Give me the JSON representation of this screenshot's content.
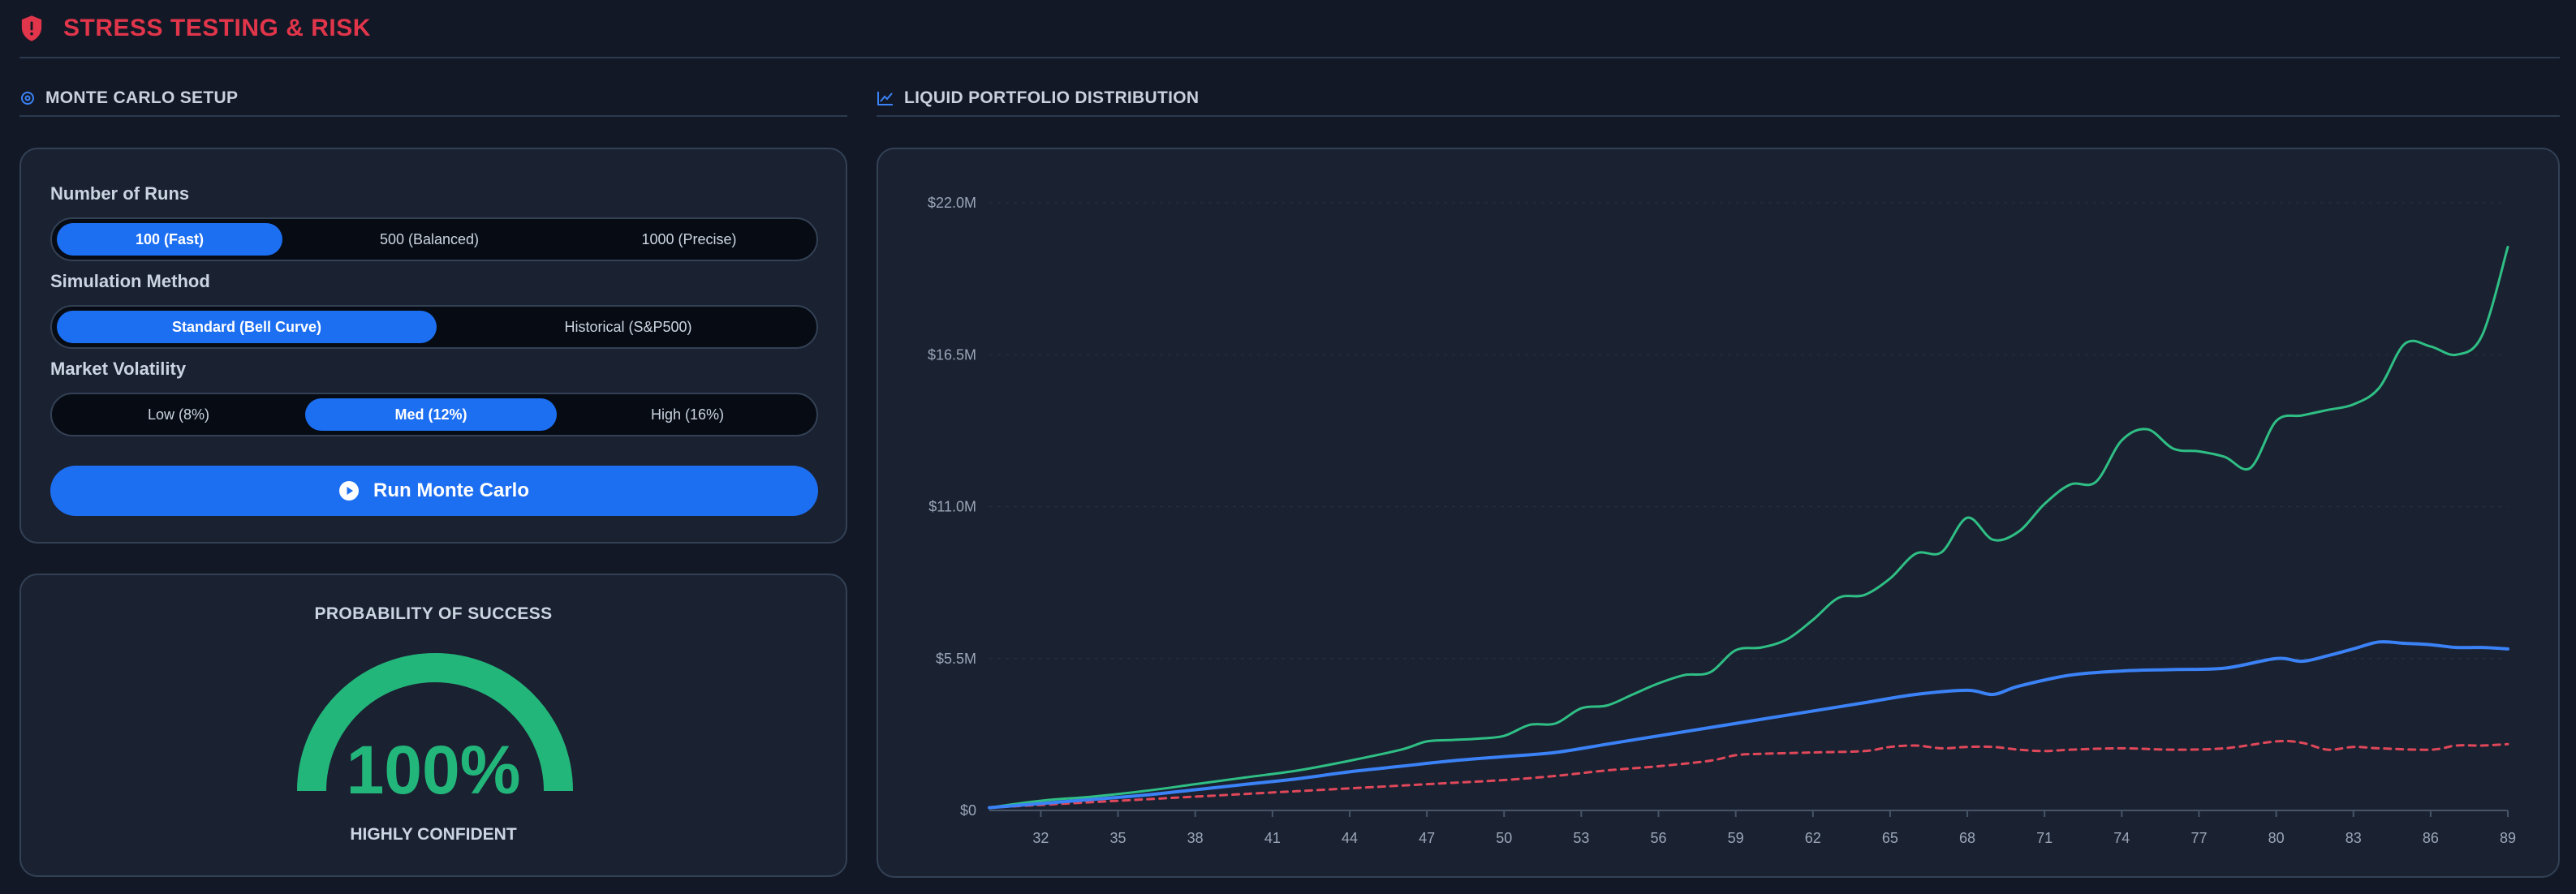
{
  "header": {
    "title": "STRESS TESTING & RISK",
    "icon": "shield-alert-icon",
    "color": "#e0354a"
  },
  "setup": {
    "heading": "MONTE CARLO SETUP",
    "runs": {
      "label": "Number of Runs",
      "options": [
        "100 (Fast)",
        "500 (Balanced)",
        "1000 (Precise)"
      ],
      "selected": "100 (Fast)"
    },
    "method": {
      "label": "Simulation Method",
      "options": [
        "Standard (Bell Curve)",
        "Historical (S&P500)"
      ],
      "selected": "Standard (Bell Curve)"
    },
    "volatility": {
      "label": "Market Volatility",
      "options": [
        "Low (8%)",
        "Med (12%)",
        "High (16%)"
      ],
      "selected": "Med (12%)"
    },
    "run_button": "Run Monte Carlo"
  },
  "probability": {
    "title": "PROBABILITY OF SUCCESS",
    "value": "100%",
    "fraction": 1.0,
    "subtitle": "HIGHLY CONFIDENT",
    "color": "#22b67a"
  },
  "distribution": {
    "heading": "LIQUID PORTFOLIO DISTRIBUTION"
  },
  "chart_data": {
    "type": "line",
    "ylim": [
      0,
      22000000
    ],
    "xlim": [
      30,
      89
    ],
    "y_ticks": [
      "$0",
      "$5.5M",
      "$11.0M",
      "$16.5M",
      "$22.0M"
    ],
    "y_tick_values": [
      0,
      5500000,
      11000000,
      16500000,
      22000000
    ],
    "x_ticks": [
      32,
      35,
      38,
      41,
      44,
      47,
      50,
      53,
      56,
      59,
      62,
      65,
      68,
      71,
      74,
      77,
      80,
      83,
      86,
      89
    ],
    "grid": true,
    "series": [
      {
        "key": "upper",
        "color": "#2fbf85",
        "style": "solid",
        "x": [
          30,
          32,
          34,
          36,
          38,
          40,
          42,
          44,
          46,
          47,
          48,
          49,
          50,
          51,
          52,
          53,
          54,
          55,
          56,
          57,
          58,
          59,
          60,
          61,
          62,
          63,
          64,
          65,
          66,
          67,
          68,
          69,
          70,
          71,
          72,
          73,
          74,
          75,
          76,
          77,
          78,
          79,
          80,
          81,
          82,
          83,
          84,
          85,
          86,
          87,
          88,
          89
        ],
        "y": [
          0.1,
          0.35,
          0.5,
          0.7,
          0.95,
          1.2,
          1.45,
          1.8,
          2.2,
          2.5,
          2.55,
          2.6,
          2.7,
          3.1,
          3.15,
          3.7,
          3.8,
          4.2,
          4.6,
          4.9,
          5.0,
          5.8,
          5.9,
          6.2,
          6.9,
          7.7,
          7.8,
          8.4,
          9.3,
          9.35,
          10.6,
          9.8,
          10.1,
          11.1,
          11.8,
          11.9,
          13.4,
          13.8,
          13.1,
          13.0,
          12.8,
          12.4,
          14.1,
          14.3,
          14.5,
          14.7,
          15.3,
          16.9,
          16.8,
          16.5,
          17.2,
          20.4
        ],
        "unit": "millions"
      },
      {
        "key": "median",
        "color": "#3b82f6",
        "style": "solid",
        "x": [
          30,
          32,
          34,
          36,
          38,
          40,
          42,
          44,
          46,
          48,
          50,
          52,
          54,
          56,
          58,
          60,
          62,
          64,
          66,
          68,
          69,
          70,
          72,
          74,
          76,
          78,
          80,
          81,
          82,
          83,
          84,
          85,
          86,
          87,
          88,
          89
        ],
        "y": [
          0.1,
          0.25,
          0.4,
          0.55,
          0.75,
          0.95,
          1.15,
          1.4,
          1.6,
          1.8,
          1.95,
          2.1,
          2.4,
          2.7,
          3.0,
          3.3,
          3.6,
          3.9,
          4.2,
          4.35,
          4.2,
          4.5,
          4.9,
          5.05,
          5.1,
          5.15,
          5.5,
          5.4,
          5.6,
          5.85,
          6.1,
          6.05,
          6.0,
          5.9,
          5.9,
          5.85
        ],
        "unit": "millions"
      },
      {
        "key": "lower",
        "color": "#e0485a",
        "style": "dashed",
        "x": [
          30,
          32,
          34,
          36,
          38,
          40,
          42,
          44,
          46,
          48,
          50,
          52,
          54,
          56,
          58,
          59,
          60,
          62,
          64,
          65,
          66,
          67,
          68,
          69,
          70,
          71,
          72,
          74,
          76,
          78,
          80,
          81,
          82,
          83,
          84,
          86,
          87,
          88,
          89
        ],
        "y": [
          0.1,
          0.2,
          0.3,
          0.4,
          0.5,
          0.6,
          0.7,
          0.8,
          0.9,
          1.0,
          1.1,
          1.25,
          1.45,
          1.6,
          1.8,
          2.0,
          2.05,
          2.1,
          2.15,
          2.3,
          2.35,
          2.25,
          2.3,
          2.3,
          2.2,
          2.15,
          2.2,
          2.25,
          2.2,
          2.25,
          2.5,
          2.45,
          2.2,
          2.3,
          2.25,
          2.2,
          2.35,
          2.35,
          2.4
        ],
        "unit": "millions"
      }
    ]
  }
}
